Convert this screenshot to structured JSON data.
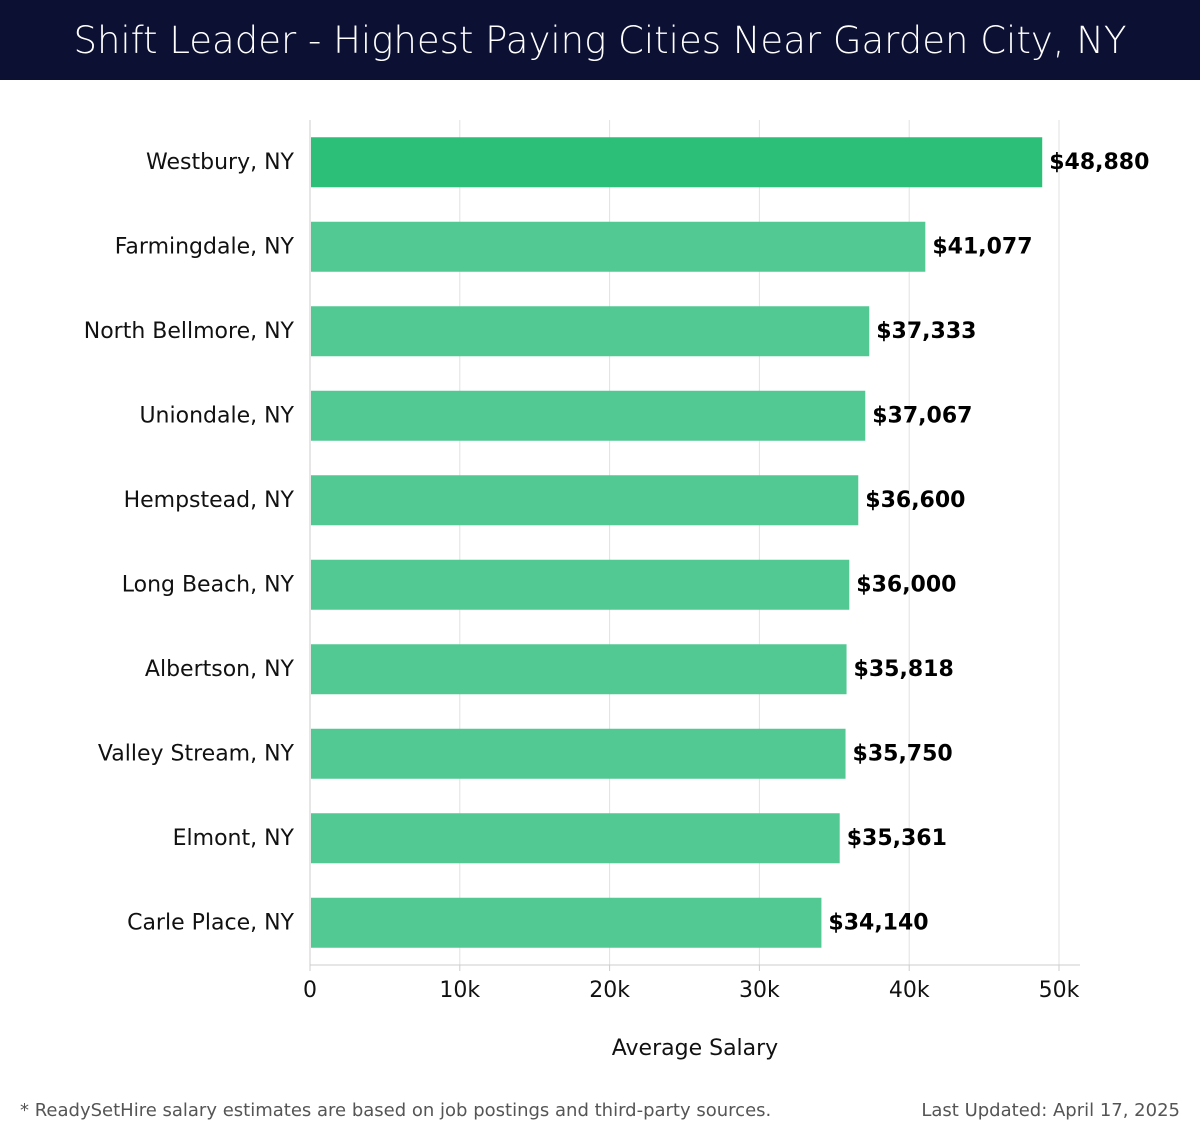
{
  "title": "Shift Leader - Highest Paying Cities Near Garden City, NY",
  "chart_data": {
    "type": "bar",
    "orientation": "horizontal",
    "categories": [
      "Westbury, NY",
      "Farmingdale, NY",
      "North Bellmore, NY",
      "Uniondale, NY",
      "Hempstead, NY",
      "Long Beach, NY",
      "Albertson, NY",
      "Valley Stream, NY",
      "Elmont, NY",
      "Carle Place, NY"
    ],
    "values": [
      48880,
      41077,
      37333,
      37067,
      36600,
      36000,
      35818,
      35750,
      35361,
      34140
    ],
    "value_labels": [
      "$48,880",
      "$41,077",
      "$37,333",
      "$37,067",
      "$36,600",
      "$36,000",
      "$35,818",
      "$35,750",
      "$35,361",
      "$34,140"
    ],
    "xlabel": "Average Salary",
    "ylabel": "",
    "xlim": [
      0,
      50000
    ],
    "x_ticks": [
      0,
      10000,
      20000,
      30000,
      40000,
      50000
    ],
    "x_tick_labels": [
      "0",
      "10k",
      "20k",
      "30k",
      "40k",
      "50k"
    ],
    "grid": "vertical",
    "colors": {
      "top_bar": "#2bbf77",
      "bar": "#52c992",
      "grid": "#e2e2e2",
      "axis": "#cccccc"
    }
  },
  "footer": {
    "note": "* ReadySetHire salary estimates are based on job postings and third-party sources.",
    "updated": "Last Updated: April 17, 2025"
  },
  "colors": {
    "title_bg": "#0c1033",
    "title_text": "#ffffff"
  }
}
